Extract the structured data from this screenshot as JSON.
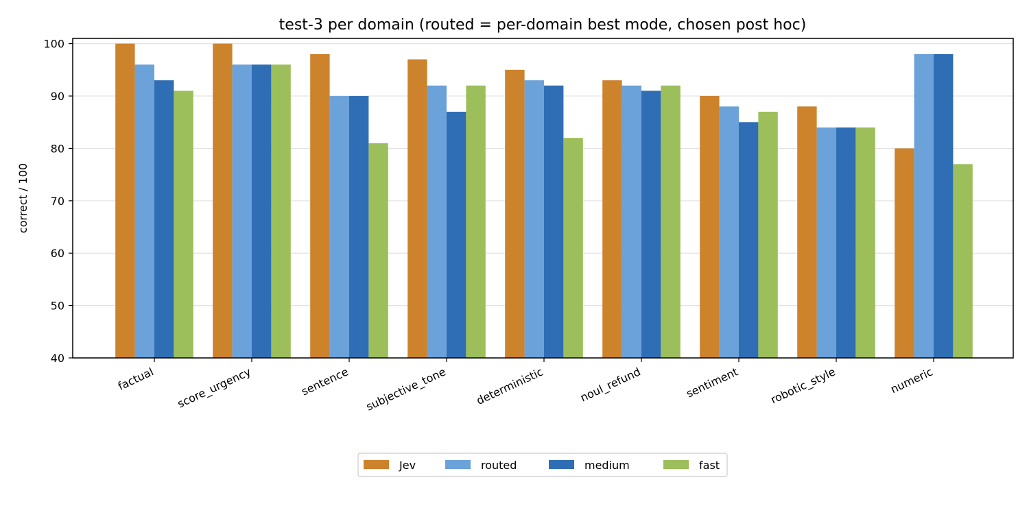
{
  "chart_data": {
    "type": "bar",
    "title": "test-3 per domain (routed = per-domain best mode, chosen post hoc)",
    "xlabel": "",
    "ylabel": "correct / 100",
    "ylim": [
      40,
      101
    ],
    "yticks": [
      40,
      50,
      60,
      70,
      80,
      90,
      100
    ],
    "grid": "horizontal",
    "legend_position": "bottom-center",
    "categories": [
      "factual",
      "score_urgency",
      "sentence",
      "subjective_tone",
      "deterministic",
      "noul_refund",
      "sentiment",
      "robotic_style",
      "numeric"
    ],
    "series": [
      {
        "name": "Jev",
        "color": "#cd822c",
        "values": [
          100,
          100,
          98,
          97,
          95,
          93,
          90,
          88,
          80
        ]
      },
      {
        "name": "routed",
        "color": "#6ca2da",
        "values": [
          96,
          96,
          90,
          92,
          93,
          92,
          88,
          84,
          98
        ]
      },
      {
        "name": "medium",
        "color": "#2f6eb5",
        "values": [
          93,
          96,
          90,
          87,
          92,
          91,
          85,
          84,
          98
        ]
      },
      {
        "name": "fast",
        "color": "#9cbf5b",
        "values": [
          91,
          96,
          81,
          92,
          82,
          92,
          87,
          84,
          77
        ]
      }
    ]
  }
}
